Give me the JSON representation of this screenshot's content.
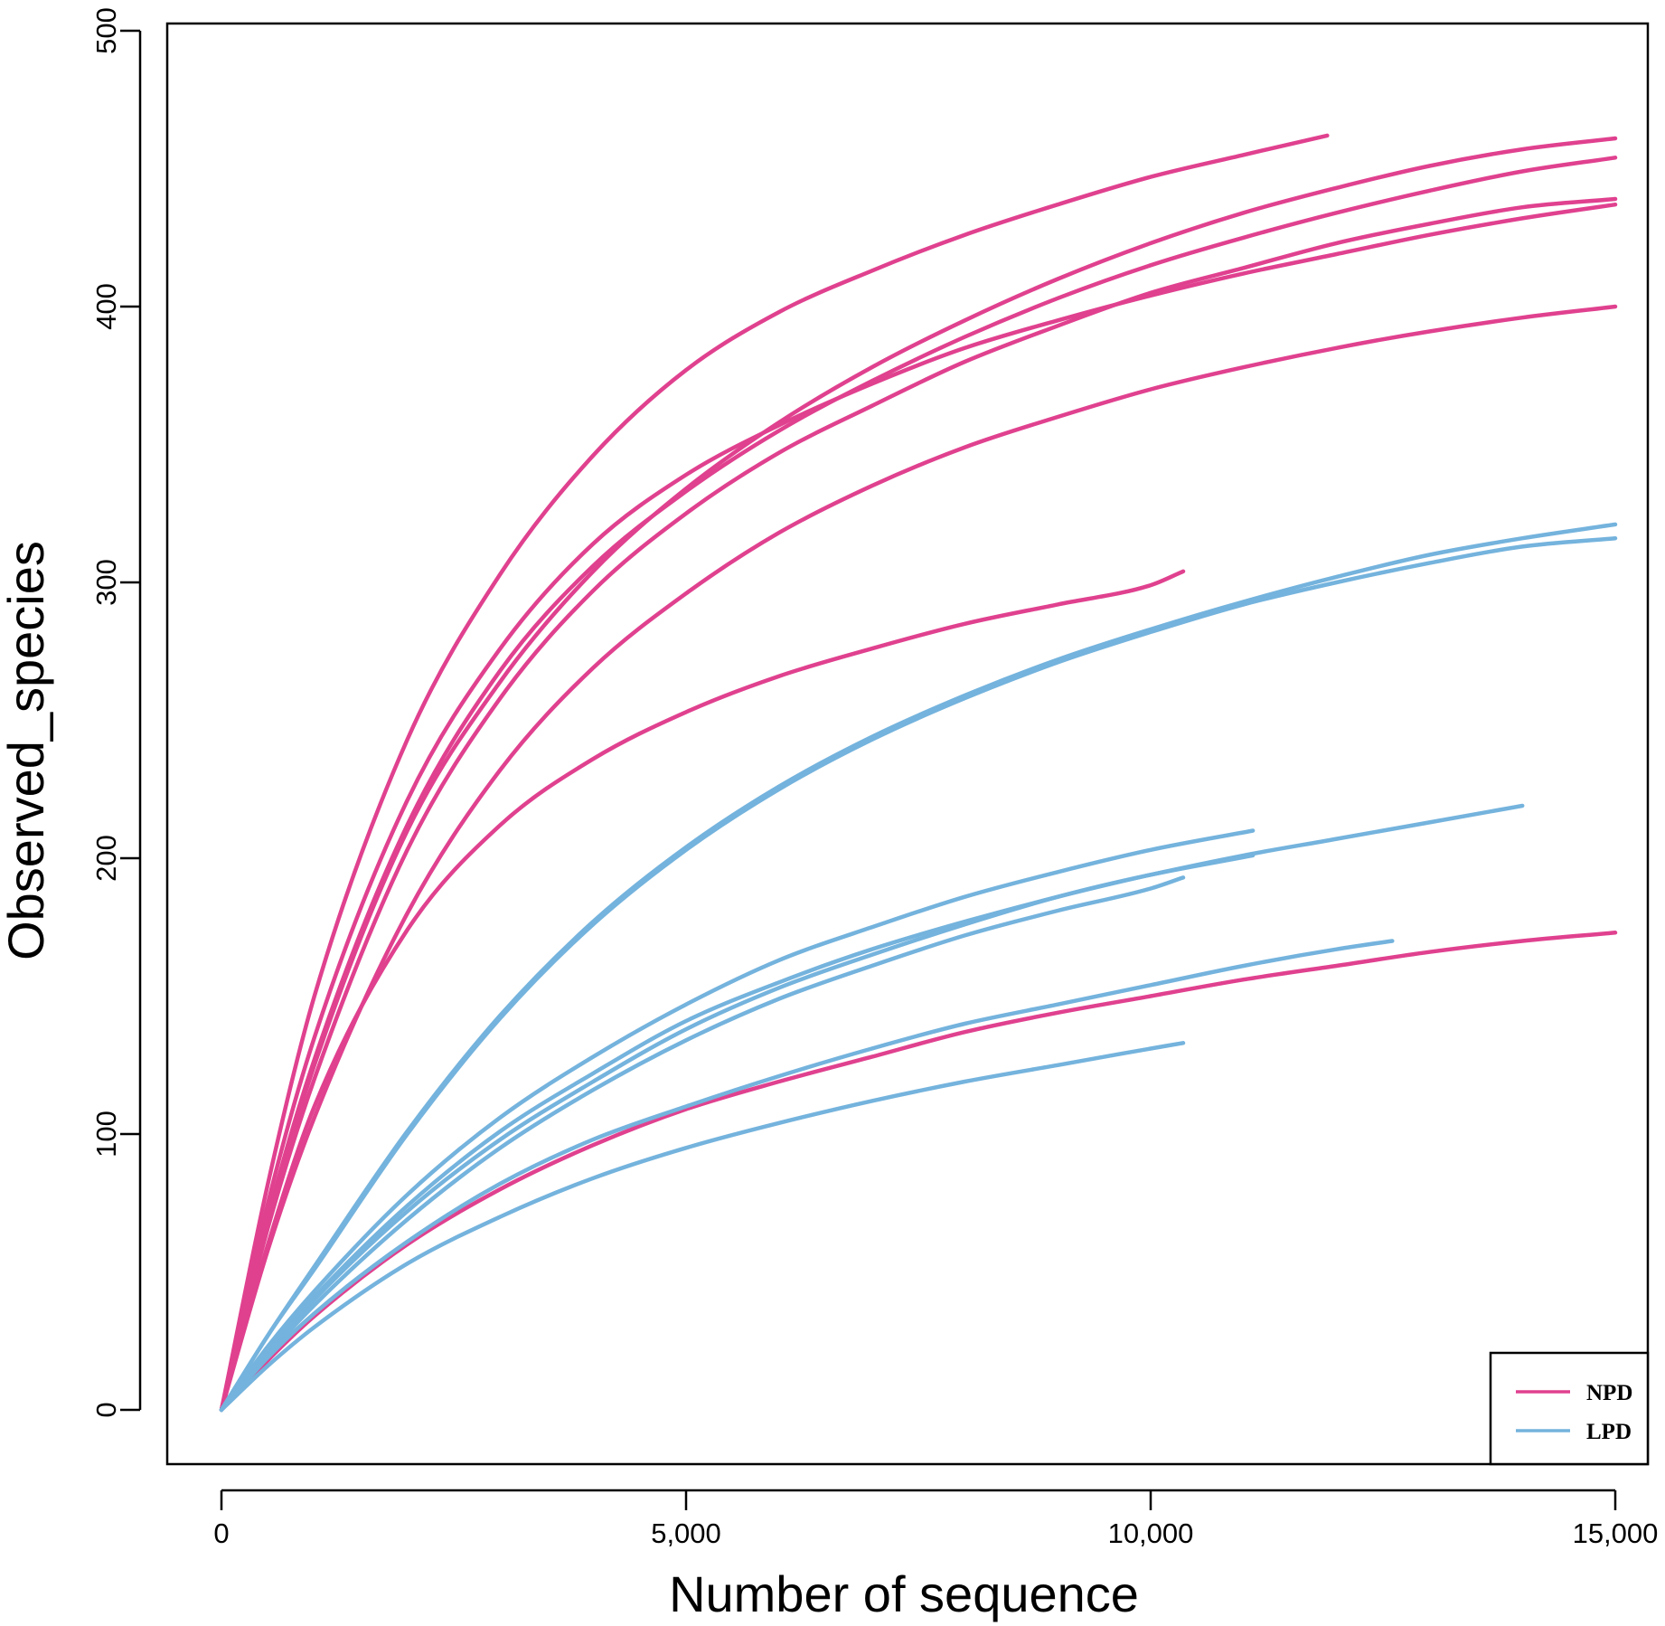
{
  "chart_data": {
    "type": "line",
    "title": "",
    "xlabel": "Number of sequence",
    "ylabel": "Observed_species",
    "xlim": [
      0,
      15000
    ],
    "ylim": [
      0,
      500
    ],
    "xticks": [
      0,
      5000,
      10000,
      15000
    ],
    "xtick_labels": [
      "0",
      "5,000",
      "10,000",
      "15,000"
    ],
    "yticks": [
      0,
      100,
      200,
      300,
      400,
      500
    ],
    "ytick_labels": [
      "0",
      "100",
      "200",
      "300",
      "400",
      "500"
    ],
    "grid": false,
    "legend": {
      "position": "bottom-right",
      "entries": [
        {
          "label": "NPD",
          "color": "#e0418f"
        },
        {
          "label": "LPD",
          "color": "#74b3dd"
        }
      ]
    },
    "series": [
      {
        "group": "NPD",
        "x": [
          0,
          500,
          1000,
          2000,
          3000,
          4000,
          5000,
          6000,
          7000,
          8000,
          9000,
          10000,
          11000,
          11900
        ],
        "y": [
          0,
          82,
          150,
          243,
          303,
          346,
          377,
          398,
          413,
          426,
          437,
          447,
          455,
          462
        ]
      },
      {
        "group": "NPD",
        "x": [
          0,
          500,
          1000,
          2000,
          3000,
          4000,
          5000,
          6000,
          7000,
          8000,
          9000,
          10000,
          11000,
          12000,
          13000,
          14000,
          15000
        ],
        "y": [
          0,
          68,
          125,
          210,
          264,
          304,
          334,
          358,
          378,
          395,
          410,
          423,
          434,
          443,
          451,
          457,
          461
        ]
      },
      {
        "group": "NPD",
        "x": [
          0,
          500,
          1000,
          2000,
          3000,
          4000,
          5000,
          6000,
          7000,
          8000,
          9000,
          10000,
          11000,
          12000,
          13000,
          14000,
          15000
        ],
        "y": [
          0,
          70,
          127,
          212,
          268,
          306,
          333,
          355,
          373,
          389,
          403,
          415,
          425,
          434,
          442,
          449,
          454
        ]
      },
      {
        "group": "NPD",
        "x": [
          0,
          500,
          1000,
          2000,
          3000,
          4000,
          5000,
          6000,
          7000,
          8000,
          9000,
          10000,
          11000,
          12000,
          13000,
          14000,
          15000
        ],
        "y": [
          0,
          75,
          135,
          221,
          276,
          314,
          339,
          357,
          372,
          385,
          395,
          404,
          412,
          419,
          426,
          432,
          437
        ]
      },
      {
        "group": "NPD",
        "x": [
          0,
          500,
          1000,
          2000,
          3000,
          4000,
          5000,
          6000,
          7000,
          8000,
          9000,
          10000,
          11000,
          12000,
          13000,
          14000,
          15000
        ],
        "y": [
          0,
          66,
          120,
          203,
          258,
          297,
          325,
          347,
          364,
          380,
          393,
          405,
          414,
          423,
          430,
          436,
          439
        ]
      },
      {
        "group": "NPD",
        "x": [
          0,
          500,
          1000,
          2000,
          3000,
          4000,
          5000,
          6000,
          7000,
          8000,
          9000,
          10000,
          11000,
          12000,
          13000,
          14000,
          15000
        ],
        "y": [
          0,
          58,
          106,
          180,
          232,
          269,
          296,
          318,
          335,
          349,
          360,
          370,
          378,
          385,
          391,
          396,
          400
        ]
      },
      {
        "group": "NPD",
        "x": [
          0,
          500,
          1000,
          2000,
          3000,
          4000,
          5000,
          6000,
          7000,
          8000,
          9000,
          10000,
          10350
        ],
        "y": [
          0,
          60,
          110,
          174,
          212,
          236,
          253,
          266,
          276,
          285,
          292,
          299,
          304
        ]
      },
      {
        "group": "NPD",
        "x": [
          0,
          500,
          1000,
          2000,
          3000,
          4000,
          5000,
          6000,
          7000,
          8000,
          9000,
          10000,
          11000,
          12000,
          13000,
          14000,
          15000
        ],
        "y": [
          0,
          18,
          34,
          60,
          80,
          96,
          109,
          119,
          128,
          137,
          144,
          150,
          156,
          161,
          166,
          170,
          173
        ]
      },
      {
        "group": "LPD",
        "x": [
          0,
          500,
          1000,
          2000,
          3000,
          4000,
          5000,
          6000,
          7000,
          8000,
          9000,
          10000,
          11000,
          12000,
          13000,
          14000,
          15000
        ],
        "y": [
          0,
          27,
          52,
          101,
          143,
          177,
          204,
          226,
          244,
          259,
          272,
          283,
          293,
          302,
          310,
          316,
          321
        ]
      },
      {
        "group": "LPD",
        "x": [
          0,
          500,
          1000,
          2000,
          3000,
          4000,
          5000,
          6000,
          7000,
          8000,
          9000,
          10000,
          11000,
          12000,
          13000,
          14000,
          15000
        ],
        "y": [
          0,
          27,
          51,
          100,
          142,
          176,
          203,
          225,
          243,
          258,
          271,
          282,
          292,
          300,
          307,
          313,
          316
        ]
      },
      {
        "group": "LPD",
        "x": [
          0,
          500,
          1000,
          2000,
          3000,
          4000,
          5000,
          6000,
          7000,
          8000,
          9000,
          10000,
          11100
        ],
        "y": [
          0,
          23,
          43,
          78,
          106,
          128,
          147,
          163,
          175,
          186,
          195,
          203,
          210
        ]
      },
      {
        "group": "LPD",
        "x": [
          0,
          500,
          1000,
          2000,
          3000,
          4000,
          5000,
          6000,
          7000,
          8000,
          9000,
          10000,
          11000,
          12000,
          13000,
          14000
        ],
        "y": [
          0,
          22,
          41,
          74,
          101,
          122,
          141,
          155,
          167,
          177,
          186,
          194,
          201,
          207,
          213,
          219
        ]
      },
      {
        "group": "LPD",
        "x": [
          0,
          500,
          1000,
          2000,
          3000,
          4000,
          5000,
          6000,
          7000,
          8000,
          9000,
          10000,
          11100
        ],
        "y": [
          0,
          21,
          40,
          72,
          98,
          119,
          138,
          153,
          165,
          176,
          186,
          194,
          201
        ]
      },
      {
        "group": "LPD",
        "x": [
          0,
          500,
          1000,
          2000,
          3000,
          4000,
          5000,
          6000,
          7000,
          8000,
          9000,
          10000,
          10350
        ],
        "y": [
          0,
          20,
          38,
          69,
          95,
          116,
          134,
          149,
          161,
          172,
          181,
          189,
          193
        ]
      },
      {
        "group": "LPD",
        "x": [
          0,
          500,
          1000,
          2000,
          3000,
          4000,
          5000,
          6000,
          7000,
          8000,
          9000,
          10000,
          11000,
          12000,
          12600
        ],
        "y": [
          0,
          19,
          35,
          61,
          82,
          98,
          110,
          121,
          131,
          140,
          147,
          154,
          161,
          167,
          170
        ]
      },
      {
        "group": "LPD",
        "x": [
          0,
          500,
          1000,
          2000,
          3000,
          4000,
          5000,
          6000,
          7000,
          8000,
          9000,
          10000,
          10350
        ],
        "y": [
          0,
          16,
          30,
          53,
          70,
          84,
          95,
          104,
          112,
          119,
          125,
          131,
          133
        ]
      }
    ]
  }
}
